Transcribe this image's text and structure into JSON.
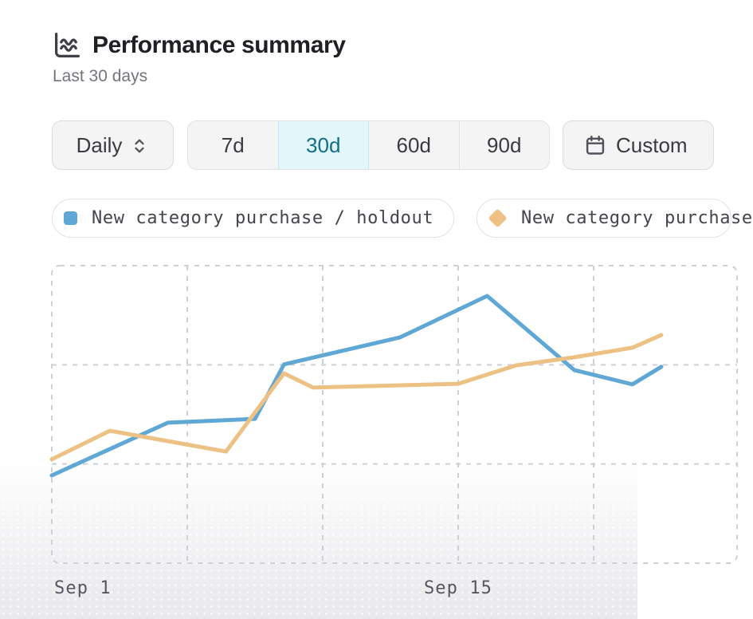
{
  "header": {
    "title": "Performance summary",
    "subtitle": "Last 30 days",
    "icon": "area-chart-icon"
  },
  "controls": {
    "granularity": {
      "value": "Daily",
      "icon": "chevrons-up-down-icon"
    },
    "ranges": [
      {
        "label": "7d",
        "selected": false
      },
      {
        "label": "30d",
        "selected": true
      },
      {
        "label": "60d",
        "selected": false
      },
      {
        "label": "90d",
        "selected": false
      }
    ],
    "custom_range": {
      "label": "Custom",
      "icon": "calendar-icon"
    }
  },
  "legend": [
    {
      "label": "New category purchase / holdout",
      "marker": "square",
      "color": "#5fa8d6"
    },
    {
      "label": "New category purchase",
      "marker": "diamond",
      "color": "#edc183"
    }
  ],
  "colors": {
    "series_blue": "#5fa8d6",
    "series_orange": "#edc183",
    "selected_range_bg": "#e3f6fa",
    "selected_range_text": "#116e8a",
    "gridline": "#cfd0d5"
  },
  "chart_data": {
    "type": "line",
    "title": "Performance summary",
    "x_axis": {
      "tick_labels": [
        "Sep 1",
        "Sep 15"
      ],
      "start_label": "Sep 1",
      "days_per_gridline": 4.67,
      "visible_span_days": 21
    },
    "y_axis": {
      "labels_visible": false,
      "range": [
        0,
        100
      ]
    },
    "grid": {
      "style": "dashed",
      "vertical_lines": 5,
      "horizontal_lines": 4,
      "plot_border": "dashed-rounded"
    },
    "legend_position": "top",
    "series": [
      {
        "name": "New category purchase / holdout",
        "color": "#5fa8d6",
        "points": [
          {
            "day": 0,
            "value": 29.5
          },
          {
            "day": 4,
            "value": 47.2
          },
          {
            "day": 7,
            "value": 48.5
          },
          {
            "day": 8,
            "value": 66.8
          },
          {
            "day": 12,
            "value": 75.9
          },
          {
            "day": 15,
            "value": 89.8
          },
          {
            "day": 18,
            "value": 64.9
          },
          {
            "day": 20,
            "value": 60.1
          },
          {
            "day": 21,
            "value": 66.0
          }
        ]
      },
      {
        "name": "New category purchase",
        "color": "#edc183",
        "points": [
          {
            "day": 0,
            "value": 34.9
          },
          {
            "day": 2,
            "value": 44.5
          },
          {
            "day": 6,
            "value": 37.5
          },
          {
            "day": 8,
            "value": 63.8
          },
          {
            "day": 9,
            "value": 59.0
          },
          {
            "day": 14,
            "value": 60.3
          },
          {
            "day": 16,
            "value": 66.5
          },
          {
            "day": 18,
            "value": 69.2
          },
          {
            "day": 20,
            "value": 72.4
          },
          {
            "day": 21,
            "value": 76.7
          }
        ]
      }
    ]
  }
}
